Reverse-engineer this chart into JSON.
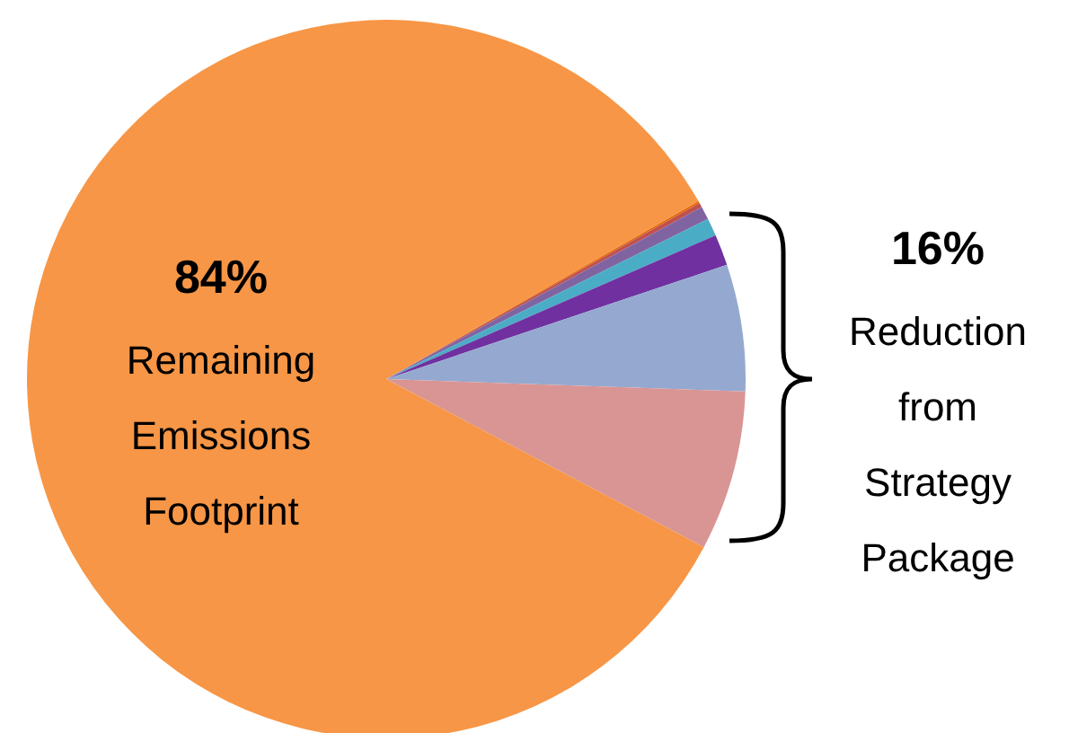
{
  "chart_data": {
    "type": "pie",
    "categories": [
      null,
      null,
      null,
      null,
      null,
      null,
      null,
      null
    ],
    "values": [
      0.1,
      0.2,
      0.6,
      0.8,
      1.4,
      5.7,
      7.2,
      84
    ],
    "colors": [
      "#e46c0a",
      "#c0504d",
      "#8064a2",
      "#4bacc6",
      "#7030a0",
      "#95a9d0",
      "#d99594",
      "#f79646"
    ],
    "annotations": [
      "84%",
      "Remaining Emissions Footprint",
      "16%",
      "Reduction from Strategy Package"
    ]
  }
}
